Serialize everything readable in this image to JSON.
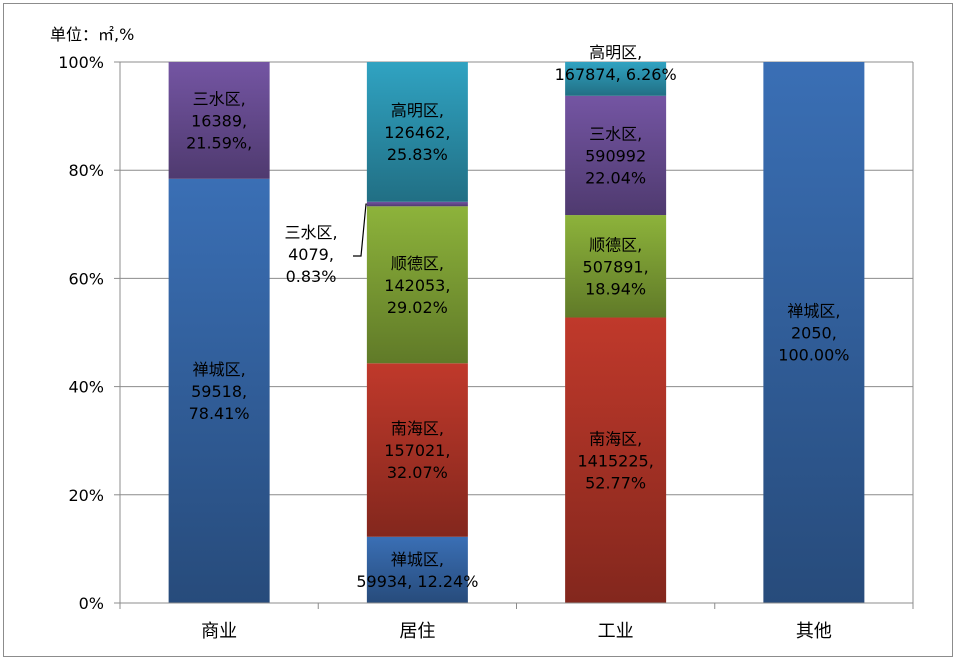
{
  "chart_data": {
    "type": "bar",
    "stacked": "percent",
    "unit_label": "单位：㎡,%",
    "ylim": [
      0,
      100
    ],
    "yticks": [
      "0%",
      "20%",
      "40%",
      "60%",
      "80%",
      "100%"
    ],
    "categories": [
      "商业",
      "居住",
      "工业",
      "其他"
    ],
    "grid": true,
    "series": [
      {
        "name": "禅城区",
        "color": "#3a6fb5",
        "area": [
          59518,
          59934,
          0,
          2050
        ],
        "percent": [
          78.41,
          12.24,
          0,
          100.0
        ],
        "labels": [
          "禅城区,\n59518,\n78.41%",
          "禅城区,\n59934, 12.24%",
          "",
          "禅城区,\n2050,\n100.00%"
        ]
      },
      {
        "name": "南海区",
        "color": "#c0392b",
        "area": [
          0,
          157021,
          1415225,
          0
        ],
        "percent": [
          0,
          32.07,
          52.77,
          0
        ],
        "labels": [
          "",
          "南海区,\n157021,\n32.07%",
          "南海区,\n1415225,\n52.77%",
          ""
        ]
      },
      {
        "name": "顺德区",
        "color": "#8db33b",
        "area": [
          0,
          142053,
          507891,
          0
        ],
        "percent": [
          0,
          29.02,
          18.94,
          0
        ],
        "labels": [
          "",
          "顺德区,\n142053,\n29.02%",
          "顺德区,\n507891,\n18.94%",
          ""
        ]
      },
      {
        "name": "三水区",
        "color": "#7455a3",
        "area": [
          16389,
          4079,
          590992,
          0
        ],
        "percent": [
          21.59,
          0.83,
          22.04,
          0
        ],
        "labels": [
          "三水区,\n16389,\n21.59%,",
          "三水区,\n4079,\n0.83%",
          "三水区,\n590992\n22.04%",
          ""
        ]
      },
      {
        "name": "高明区",
        "color": "#30a3c2",
        "area": [
          0,
          126462,
          167874,
          0
        ],
        "percent": [
          0,
          25.83,
          6.26,
          0
        ],
        "labels": [
          "",
          "高明区,\n126462,\n25.83%",
          "高明区,\n167874, 6.26%",
          ""
        ]
      }
    ]
  }
}
